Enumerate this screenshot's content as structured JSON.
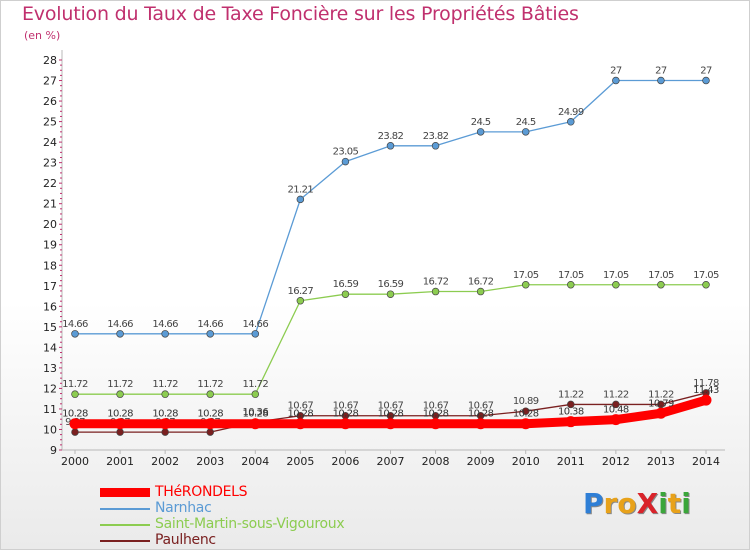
{
  "title": "Evolution du Taux de Taxe Foncière sur les Propriétés Bâties",
  "subtitle": "(en %)",
  "logo": {
    "text": "ProXiti",
    "letters": [
      {
        "char": "P",
        "color": "#2f7fd6"
      },
      {
        "char": "r",
        "color": "#e8a21a"
      },
      {
        "char": "o",
        "color": "#e8a21a"
      },
      {
        "char": "X",
        "color": "#d9232a"
      },
      {
        "char": "i",
        "color": "#3aa63a"
      },
      {
        "char": "t",
        "color": "#e8a21a"
      },
      {
        "char": "i",
        "color": "#3aa63a"
      }
    ]
  },
  "chart_data": {
    "type": "line",
    "x": [
      "2000",
      "2001",
      "2002",
      "2003",
      "2004",
      "2005",
      "2006",
      "2007",
      "2008",
      "2009",
      "2010",
      "2011",
      "2012",
      "2013",
      "2014"
    ],
    "ylim": [
      9,
      28
    ],
    "yticks": [
      "9",
      "10",
      "11",
      "12",
      "13",
      "14",
      "15",
      "16",
      "17",
      "18",
      "19",
      "20",
      "21",
      "22",
      "23",
      "24",
      "25",
      "26",
      "27",
      "28"
    ],
    "grid": false,
    "legend_position": "bottom-left",
    "series": [
      {
        "name": "Paulhenc",
        "color": "#7a2020",
        "values": [
          9.87,
          9.87,
          9.87,
          9.87,
          10.36,
          10.67,
          10.67,
          10.67,
          10.67,
          10.67,
          10.89,
          11.22,
          11.22,
          11.22,
          11.78
        ],
        "labels": [
          "9.87",
          "9.87",
          "9.87",
          "9.87",
          "10.36",
          "10.67",
          "10.67",
          "10.67",
          "10.67",
          "10.67",
          "10.89",
          "11.22",
          "11.22",
          "11.22",
          "11.78"
        ]
      },
      {
        "name": "Saint-Martin-sous-Vigouroux",
        "color": "#8ccc50",
        "values": [
          11.72,
          11.72,
          11.72,
          11.72,
          11.72,
          16.27,
          16.59,
          16.59,
          16.72,
          16.72,
          17.05,
          17.05,
          17.05,
          17.05,
          17.05
        ],
        "labels": [
          "11.72",
          "11.72",
          "11.72",
          "11.72",
          "11.72",
          "16.27",
          "16.59",
          "16.59",
          "16.72",
          "16.72",
          "17.05",
          "17.05",
          "17.05",
          "17.05",
          "17.05"
        ]
      },
      {
        "name": "Narnhac",
        "color": "#5b9bd5",
        "values": [
          14.66,
          14.66,
          14.66,
          14.66,
          14.66,
          21.21,
          23.05,
          23.82,
          23.82,
          24.5,
          24.5,
          24.99,
          27,
          27,
          27
        ],
        "labels": [
          "14.66",
          "14.66",
          "14.66",
          "14.66",
          "14.66",
          "21.21",
          "23.05",
          "23.82",
          "23.82",
          "24.5",
          "24.5",
          "24.99",
          "27",
          "27",
          "27"
        ]
      },
      {
        "name": "THéRONDELS",
        "color": "#ff0000",
        "values": [
          10.28,
          10.28,
          10.28,
          10.28,
          10.28,
          10.28,
          10.28,
          10.28,
          10.28,
          10.28,
          10.28,
          10.38,
          10.48,
          10.79,
          11.43
        ],
        "labels": [
          "10.28",
          "10.28",
          "10.28",
          "10.28",
          "10.28",
          "10.28",
          "10.28",
          "10.28",
          "10.28",
          "10.28",
          "10.28",
          "10.38",
          "10.48",
          "10.79",
          "11.43"
        ]
      }
    ],
    "legend": [
      {
        "name": "THéRONDELS",
        "color": "#ff0000"
      },
      {
        "name": "Narnhac",
        "color": "#5b9bd5"
      },
      {
        "name": "Saint-Martin-sous-Vigouroux",
        "color": "#8ccc50"
      },
      {
        "name": "Paulhenc",
        "color": "#7a2020"
      }
    ]
  }
}
